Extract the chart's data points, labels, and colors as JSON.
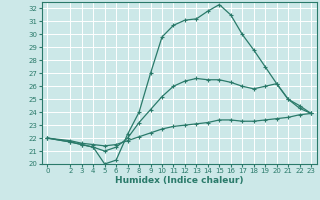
{
  "xlabel": "Humidex (Indice chaleur)",
  "bg_color": "#cce8e8",
  "line_color": "#2a7a6a",
  "grid_color": "#ffffff",
  "ylim": [
    20,
    32.5
  ],
  "xlim": [
    -0.5,
    23.5
  ],
  "yticks": [
    20,
    21,
    22,
    23,
    24,
    25,
    26,
    27,
    28,
    29,
    30,
    31,
    32
  ],
  "xticks": [
    0,
    2,
    3,
    4,
    5,
    6,
    7,
    8,
    9,
    10,
    11,
    12,
    13,
    14,
    15,
    16,
    17,
    18,
    19,
    20,
    21,
    22,
    23
  ],
  "lines": [
    {
      "x": [
        0,
        2,
        3,
        4,
        5,
        6,
        7,
        8,
        9,
        10,
        11,
        12,
        13,
        14,
        15,
        16,
        17,
        18,
        19,
        20,
        21,
        22,
        23
      ],
      "y": [
        22,
        21.7,
        21.5,
        21.3,
        20.0,
        20.3,
        22.3,
        24.0,
        27.0,
        29.8,
        30.7,
        31.1,
        31.2,
        31.8,
        32.3,
        31.5,
        30.0,
        28.8,
        27.5,
        26.2,
        25.0,
        24.3,
        23.9
      ]
    },
    {
      "x": [
        0,
        2,
        3,
        4,
        5,
        6,
        7,
        8,
        9,
        10,
        11,
        12,
        13,
        14,
        15,
        16,
        17,
        18,
        19,
        20,
        21,
        22,
        23
      ],
      "y": [
        22,
        21.7,
        21.5,
        21.3,
        21.0,
        21.3,
        22.0,
        23.2,
        24.2,
        25.2,
        26.0,
        26.4,
        26.6,
        26.5,
        26.5,
        26.3,
        26.0,
        25.8,
        26.0,
        26.2,
        25.0,
        24.5,
        23.9
      ]
    },
    {
      "x": [
        0,
        2,
        3,
        4,
        5,
        6,
        7,
        8,
        9,
        10,
        11,
        12,
        13,
        14,
        15,
        16,
        17,
        18,
        19,
        20,
        21,
        22,
        23
      ],
      "y": [
        22,
        21.8,
        21.6,
        21.5,
        21.4,
        21.5,
        21.8,
        22.1,
        22.4,
        22.7,
        22.9,
        23.0,
        23.1,
        23.2,
        23.4,
        23.4,
        23.3,
        23.3,
        23.4,
        23.5,
        23.6,
        23.8,
        23.9
      ]
    }
  ]
}
